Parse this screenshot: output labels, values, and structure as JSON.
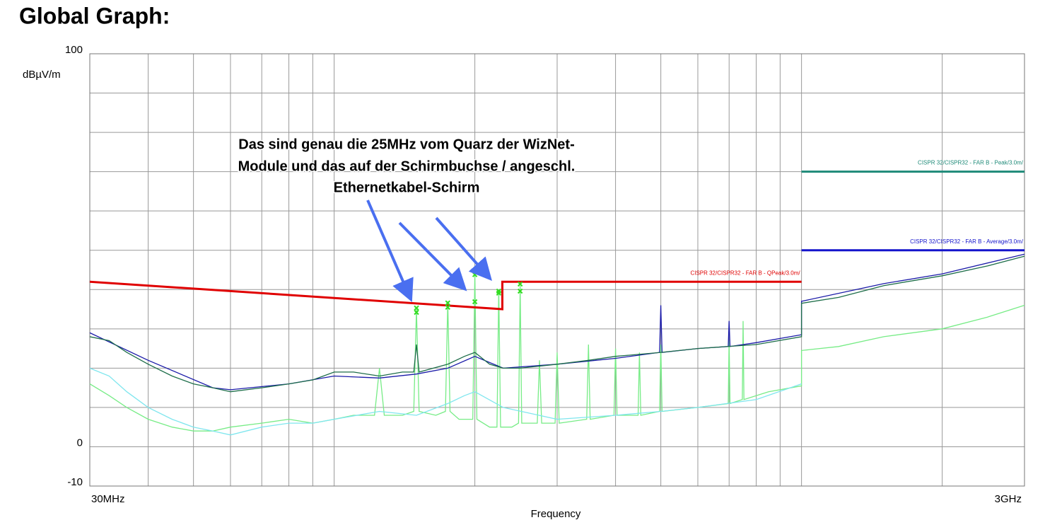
{
  "chart_data": {
    "type": "line",
    "title": "Global Graph:",
    "ylabel": "dBµV/m",
    "xlabel": "Frequency",
    "xlog": true,
    "grid": true,
    "xlim": [
      30,
      3000
    ],
    "ylim": [
      -10,
      100
    ],
    "xticks": [
      {
        "value": 30,
        "label": "30MHz"
      },
      {
        "value": 3000,
        "label": "3GHz"
      }
    ],
    "yticks": [
      100,
      0,
      -10
    ],
    "xgrid": [
      40,
      50,
      60,
      70,
      80,
      90,
      100,
      200,
      300,
      400,
      500,
      600,
      700,
      800,
      900,
      1000,
      2000
    ],
    "ygrid": [
      90,
      80,
      70,
      60,
      50,
      40,
      30,
      20,
      10
    ],
    "annotation": [
      "Das sind genau die 25MHz vom Quarz der WizNet-",
      "Module und das auf der Schirmbuchse / angeschl.",
      "Ethernetkabel-Schirm"
    ],
    "series": [
      {
        "color": "#77ec86",
        "x": [
          30,
          33,
          36,
          40,
          45,
          50,
          55,
          60,
          70,
          80,
          90,
          100,
          110,
          122,
          125,
          128,
          140,
          148,
          150,
          152,
          165,
          173,
          175,
          177,
          185,
          198,
          200,
          202,
          215,
          223,
          225,
          227,
          240,
          248,
          250,
          252,
          272,
          275,
          278,
          297,
          300,
          303,
          347,
          350,
          353,
          397,
          400,
          403,
          447,
          450,
          453,
          497,
          500,
          503,
          600,
          697,
          700,
          703,
          747,
          750,
          753,
          850,
          1000,
          1000,
          1200,
          1500,
          2000,
          2500,
          3000
        ],
        "values": [
          16,
          13,
          10,
          7,
          5,
          4,
          4,
          5,
          6,
          7,
          6,
          7,
          8,
          8,
          20,
          8,
          8,
          9,
          35,
          9,
          8,
          9,
          37,
          9,
          7,
          7,
          44,
          7,
          5,
          5,
          40,
          5,
          5,
          6,
          41,
          6,
          6,
          22,
          6,
          6,
          24,
          6,
          7,
          26,
          7,
          8,
          25,
          8,
          8,
          24,
          8,
          9,
          26,
          9,
          10,
          11,
          27,
          11,
          12,
          32,
          12,
          14,
          15.5,
          24.5,
          25.5,
          28,
          30,
          33,
          36
        ]
      },
      {
        "color": "#7fe6ee",
        "x": [
          30,
          33,
          36,
          40,
          45,
          50,
          55,
          60,
          70,
          80,
          90,
          100,
          125,
          150,
          175,
          190,
          200,
          230,
          300,
          400,
          500,
          600,
          800,
          1000
        ],
        "values": [
          20,
          18,
          14,
          10,
          7,
          5,
          4,
          3,
          5,
          6,
          6,
          7,
          9,
          8,
          11,
          13,
          14,
          10,
          7,
          8,
          9,
          10,
          12,
          16
        ]
      },
      {
        "color": "#1a1aa8",
        "x": [
          30,
          40,
          55,
          60,
          80,
          100,
          125,
          150,
          175,
          200,
          230,
          300,
          400,
          497,
          500,
          503,
          600,
          697,
          700,
          703,
          800,
          1000,
          1000,
          1500,
          2000,
          3000
        ],
        "values": [
          29,
          22,
          15,
          14.5,
          16,
          18,
          17.5,
          18.5,
          20,
          23,
          20,
          21,
          22.5,
          24,
          36,
          24,
          25,
          25.5,
          32,
          25.5,
          26.5,
          28.5,
          37,
          41.5,
          44,
          49
        ]
      },
      {
        "color": "#1e6e4a",
        "x": [
          30,
          33,
          36,
          40,
          45,
          50,
          55,
          60,
          70,
          80,
          90,
          100,
          110,
          125,
          140,
          148,
          150,
          152,
          175,
          190,
          200,
          215,
          230,
          250,
          300,
          350,
          400,
          500,
          600,
          800,
          1000,
          1000,
          1200,
          1500,
          2000,
          2500,
          3000
        ],
        "values": [
          28,
          27,
          24,
          21,
          18,
          16,
          15,
          14,
          15,
          16,
          17,
          19,
          19,
          18,
          19,
          19,
          26,
          19,
          21,
          23,
          24,
          21,
          20,
          20,
          21,
          22,
          23,
          24,
          25,
          26,
          28,
          36.5,
          38,
          41,
          43.5,
          46,
          48.5
        ]
      }
    ],
    "limits": [
      {
        "name": "CISPR 32/CISPR32 - FAR B - QPeak/3.0m/",
        "color": "#e00000",
        "x": [
          30,
          229,
          229,
          1000
        ],
        "values": [
          42,
          35,
          42,
          42
        ]
      },
      {
        "name": "CISPR 32/CISPR32 - FAR B - Peak/3.0m/",
        "color": "#1e8a78",
        "x": [
          1000,
          3000
        ],
        "values": [
          70,
          70
        ]
      },
      {
        "name": "CISPR 32/CISPR32 - FAR B - Average/3.0m/",
        "color": "#1414cc",
        "x": [
          1000,
          3000
        ],
        "values": [
          50,
          50
        ]
      }
    ],
    "markers": {
      "color": "#33dd22",
      "x": [
        150,
        150,
        175,
        175,
        200,
        200,
        225,
        225,
        250,
        250
      ],
      "values": [
        35.3,
        34.2,
        36.6,
        35.5,
        43.8,
        36.9,
        39.6,
        39.1,
        41.4,
        39.6
      ]
    }
  }
}
